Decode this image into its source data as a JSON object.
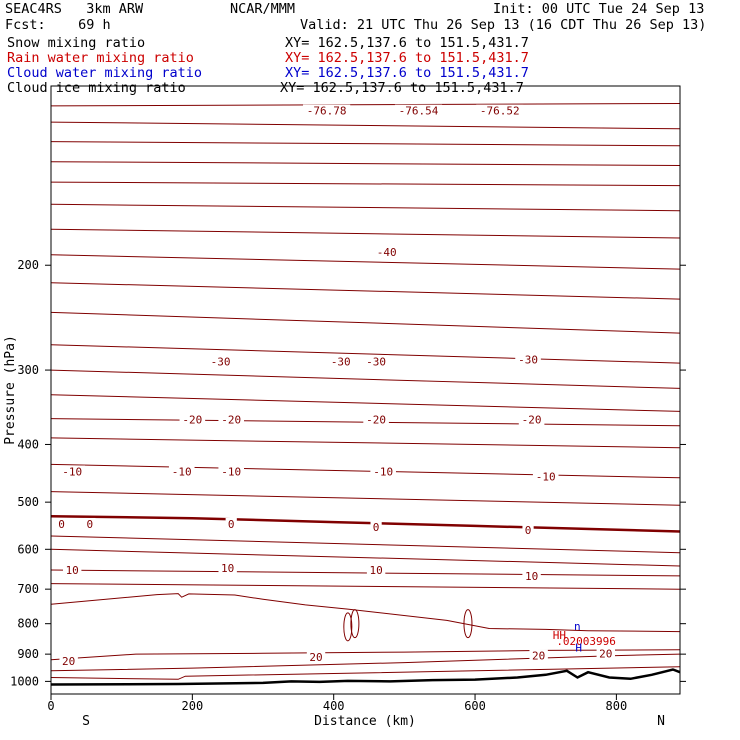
{
  "header": {
    "model": "SEAC4RS   3km ARW",
    "org": "NCAR/MMM",
    "init": "Init: 00 UTC Tue 24 Sep 13",
    "fcst": "Fcst:    69 h",
    "valid": "Valid: 21 UTC Thu 26 Sep 13 (16 CDT Thu 26 Sep 13)"
  },
  "fields": [
    {
      "name": "Snow mixing ratio",
      "xy": "XY= 162.5,137.6 to 151.5,431.7",
      "color": "#000000"
    },
    {
      "name": "Rain water mixing ratio",
      "xy": "XY= 162.5,137.6 to 151.5,431.7",
      "color": "#cc0000"
    },
    {
      "name": "Cloud water mixing ratio",
      "xy": "XY= 162.5,137.6 to 151.5,431.7",
      "color": "#0000cc"
    },
    {
      "name": "Cloud ice mixing ratio",
      "xy": "XY= 162.5,137.6 to 151.5,431.7",
      "color": "#000000"
    }
  ],
  "chart_data": {
    "type": "line",
    "xlabel": "Distance (km)",
    "ylabel": "Pressure (hPa)",
    "xlim": [
      0,
      890
    ],
    "ylim": [
      1050,
      100
    ],
    "y_scale": "log",
    "x_ticks": [
      0,
      200,
      400,
      600,
      800
    ],
    "y_ticks": [
      200,
      300,
      400,
      500,
      600,
      700,
      800,
      900,
      1000
    ],
    "x_ends": [
      "S",
      "N"
    ],
    "contour_color": "#800000",
    "isotherms": [
      {
        "label": "-76.78",
        "x": 390,
        "p": 110
      },
      {
        "label": "-76.54",
        "x": 520,
        "p": 110
      },
      {
        "label": "-76.52",
        "x": 635,
        "p": 110
      },
      {
        "label": "-40",
        "x": 475,
        "p": 190
      },
      {
        "label": "-30",
        "x": 240,
        "p": 290
      },
      {
        "label": "-30",
        "x": 410,
        "p": 290
      },
      {
        "label": "-30",
        "x": 460,
        "p": 290
      },
      {
        "label": "-30",
        "x": 675,
        "p": 288
      },
      {
        "label": "-20",
        "x": 200,
        "p": 363
      },
      {
        "label": "-20",
        "x": 255,
        "p": 363
      },
      {
        "label": "-20",
        "x": 460,
        "p": 363
      },
      {
        "label": "-20",
        "x": 680,
        "p": 363
      },
      {
        "label": "-10",
        "x": 30,
        "p": 444
      },
      {
        "label": "-10",
        "x": 185,
        "p": 444
      },
      {
        "label": "-10",
        "x": 255,
        "p": 444
      },
      {
        "label": "-10",
        "x": 470,
        "p": 444
      },
      {
        "label": "-10",
        "x": 700,
        "p": 453
      },
      {
        "label": "0",
        "x": 15,
        "p": 544
      },
      {
        "label": "0",
        "x": 55,
        "p": 544
      },
      {
        "label": "0",
        "x": 255,
        "p": 544
      },
      {
        "label": "0",
        "x": 460,
        "p": 550
      },
      {
        "label": "0",
        "x": 675,
        "p": 557
      },
      {
        "label": "10",
        "x": 30,
        "p": 650
      },
      {
        "label": "10",
        "x": 250,
        "p": 645
      },
      {
        "label": "10",
        "x": 460,
        "p": 650
      },
      {
        "label": "10",
        "x": 680,
        "p": 665
      },
      {
        "label": "20",
        "x": 25,
        "p": 925
      },
      {
        "label": "20",
        "x": 375,
        "p": 910
      },
      {
        "label": "20",
        "x": 690,
        "p": 905
      },
      {
        "label": "20",
        "x": 785,
        "p": 897
      }
    ],
    "anomaly_labels": [
      {
        "label": "HH",
        "x": 710,
        "p": 848,
        "color": "#cc0000"
      },
      {
        "label": ".02003996",
        "x": 715,
        "p": 868,
        "color": "#cc0000"
      },
      {
        "label": "n",
        "x": 740,
        "p": 820,
        "color": "#0000cc"
      },
      {
        "label": "H",
        "x": 742,
        "p": 890,
        "color": "#0000cc"
      }
    ]
  }
}
